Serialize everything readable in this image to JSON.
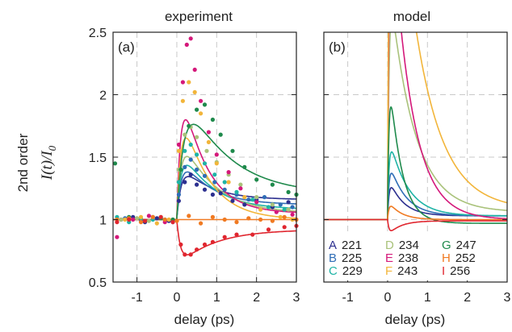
{
  "figure": {
    "ylabel_prefix": "2nd order",
    "ylabel_main": "I(t)/I",
    "ylabel_sub": "0"
  },
  "legend": [
    {
      "letter": "A",
      "value": "221",
      "color": "#2c2f8f"
    },
    {
      "letter": "B",
      "value": "225",
      "color": "#2f6db6"
    },
    {
      "letter": "C",
      "value": "229",
      "color": "#1fb4a6"
    },
    {
      "letter": "D",
      "value": "234",
      "color": "#a9c27a"
    },
    {
      "letter": "E",
      "value": "238",
      "color": "#d4187a"
    },
    {
      "letter": "F",
      "value": "243",
      "color": "#f2b53a"
    },
    {
      "letter": "G",
      "value": "247",
      "color": "#1f8a4c"
    },
    {
      "letter": "H",
      "value": "252",
      "color": "#f07a22"
    },
    {
      "letter": "I",
      "value": "256",
      "color": "#e0262f"
    }
  ],
  "chart_data": [
    {
      "type": "scatter",
      "title": "experiment",
      "panel_label": "(a)",
      "xlabel": "delay (ps)",
      "ylabel": "I(t)/I0",
      "xlim": [
        -1.6,
        3
      ],
      "ylim": [
        0.5,
        2.5
      ],
      "x_ticks": [
        "-1",
        "0",
        "1",
        "2",
        "3"
      ],
      "y_ticks": [
        "0.5",
        "1",
        "1.5",
        "2",
        "2.5"
      ],
      "grid": true,
      "legend_position": "none",
      "series": [
        {
          "label": "A",
          "color": "#2c2f8f",
          "fit": {
            "peak": 0.33,
            "tau": 0.7,
            "tail": 0.16,
            "rise": 0.12
          },
          "x": [
            -1.4,
            -1.1,
            -0.8,
            -0.5,
            -0.2,
            0.05,
            0.2,
            0.35,
            0.5,
            0.7,
            0.9,
            1.1,
            1.4,
            1.7,
            2.0,
            2.4,
            2.8
          ],
          "y": [
            1.0,
            1.02,
            0.98,
            1.01,
            0.99,
            1.15,
            1.3,
            1.36,
            1.28,
            1.24,
            1.2,
            1.21,
            1.15,
            1.12,
            1.16,
            1.1,
            1.14
          ]
        },
        {
          "label": "B",
          "color": "#2f6db6",
          "fit": {
            "peak": 0.45,
            "tau": 0.7,
            "tail": 0.12,
            "rise": 0.12
          },
          "x": [
            -1.3,
            -0.9,
            -0.6,
            -0.3,
            -0.1,
            0.05,
            0.2,
            0.35,
            0.5,
            0.7,
            0.95,
            1.2,
            1.5,
            1.8,
            2.2,
            2.6,
            2.9
          ],
          "y": [
            1.01,
            0.99,
            1.02,
            1.0,
            0.98,
            1.2,
            1.42,
            1.48,
            1.4,
            1.35,
            1.3,
            1.24,
            1.2,
            1.16,
            1.18,
            1.12,
            1.1
          ]
        },
        {
          "label": "C",
          "color": "#1fb4a6",
          "fit": {
            "peak": 0.58,
            "tau": 0.75,
            "tail": 0.08,
            "rise": 0.12
          },
          "x": [
            -1.5,
            -1.2,
            -0.9,
            -0.6,
            -0.3,
            0.05,
            0.2,
            0.35,
            0.5,
            0.7,
            0.95,
            1.2,
            1.5,
            1.9,
            2.3,
            2.7
          ],
          "y": [
            1.02,
            0.98,
            1.01,
            1.0,
            1.0,
            1.3,
            1.55,
            1.6,
            1.52,
            1.45,
            1.36,
            1.3,
            1.22,
            1.16,
            1.1,
            1.08
          ]
        },
        {
          "label": "D",
          "color": "#a9c27a",
          "fit": {
            "peak": 0.72,
            "tau": 0.8,
            "tail": 0.05,
            "rise": 0.12
          },
          "x": [
            -1.4,
            -1.0,
            -0.7,
            -0.4,
            -0.1,
            0.05,
            0.2,
            0.35,
            0.5,
            0.75,
            1.0,
            1.3,
            1.6,
            2.0,
            2.4,
            2.8
          ],
          "y": [
            1.0,
            1.01,
            0.99,
            1.02,
            1.0,
            1.4,
            1.68,
            1.74,
            1.66,
            1.55,
            1.46,
            1.36,
            1.28,
            1.18,
            1.12,
            1.08
          ]
        },
        {
          "label": "E",
          "color": "#d4187a",
          "fit": {
            "peak": 1.3,
            "tau": 0.6,
            "tail": 0.05,
            "rise": 0.12
          },
          "x": [
            -1.5,
            -1.1,
            -0.7,
            -0.3,
            0.05,
            0.15,
            0.25,
            0.35,
            0.45,
            0.6,
            0.8,
            1.0,
            1.3,
            1.6,
            2.0,
            2.5,
            2.9
          ],
          "y": [
            0.86,
            1.0,
            1.03,
            0.98,
            1.6,
            2.1,
            2.4,
            2.45,
            2.2,
            1.95,
            1.7,
            1.52,
            1.38,
            1.25,
            1.14,
            1.06,
            1.04
          ]
        },
        {
          "label": "F",
          "color": "#f2b53a",
          "fit": {
            "peak": 1.12,
            "tau": 0.65,
            "tail": 0.0,
            "rise": 0.13
          },
          "x": [
            -1.3,
            -0.9,
            -0.5,
            -0.2,
            0.05,
            0.15,
            0.3,
            0.45,
            0.6,
            0.8,
            1.0,
            1.3,
            1.7,
            2.1,
            2.6,
            2.9
          ],
          "y": [
            1.0,
            1.02,
            0.97,
            1.0,
            1.55,
            1.95,
            2.1,
            2.02,
            1.85,
            1.62,
            1.45,
            1.3,
            1.18,
            1.08,
            1.02,
            1.0
          ]
        },
        {
          "label": "G",
          "color": "#1f8a4c",
          "fit": {
            "peak": 0.98,
            "tau": 1.1,
            "tail": 0.2,
            "rise": 0.2
          },
          "x": [
            -1.55,
            -1.2,
            -0.8,
            -0.4,
            -0.1,
            0.1,
            0.3,
            0.5,
            0.7,
            0.9,
            1.1,
            1.4,
            1.7,
            2.0,
            2.4,
            2.8,
            3.0
          ],
          "y": [
            1.45,
            1.02,
            0.99,
            1.01,
            1.0,
            1.4,
            1.75,
            1.88,
            1.92,
            1.8,
            1.68,
            1.55,
            1.42,
            1.32,
            1.28,
            1.22,
            1.2
          ]
        },
        {
          "label": "H",
          "color": "#f07a22",
          "fit": {
            "peak": 0.0,
            "tau": 1.0,
            "tail": 0.0,
            "rise": 0.1
          },
          "x": [
            -1.5,
            -1.2,
            -0.9,
            -0.6,
            -0.3,
            0.0,
            0.3,
            0.6,
            0.9,
            1.2,
            1.5,
            1.8,
            2.1,
            2.4,
            2.7,
            3.0
          ],
          "y": [
            1.0,
            1.01,
            0.98,
            1.02,
            1.0,
            0.99,
            1.03,
            0.97,
            1.02,
            1.0,
            0.98,
            1.01,
            1.0,
            0.99,
            1.02,
            1.0
          ]
        },
        {
          "label": "I",
          "color": "#e0262f",
          "fit": {
            "peak": -0.3,
            "tau": 0.9,
            "tail": -0.08,
            "rise": 0.1
          },
          "x": [
            -1.5,
            -1.2,
            -0.8,
            -0.4,
            -0.1,
            0.1,
            0.2,
            0.35,
            0.5,
            0.7,
            0.9,
            1.2,
            1.5,
            1.9,
            2.3,
            2.7,
            3.0
          ],
          "y": [
            0.98,
            1.0,
            0.99,
            1.02,
            0.98,
            0.8,
            0.72,
            0.72,
            0.76,
            0.8,
            0.82,
            0.86,
            0.88,
            0.88,
            0.92,
            0.94,
            0.95
          ]
        }
      ]
    },
    {
      "type": "line",
      "title": "model",
      "panel_label": "(b)",
      "xlabel": "delay (ps)",
      "xlim": [
        -1.6,
        3
      ],
      "ylim": [
        0.5,
        2.5
      ],
      "x_ticks": [
        "-1",
        "0",
        "1",
        "2",
        "3"
      ],
      "grid": true,
      "legend_position": "bottom-left",
      "series": [
        {
          "label": "A",
          "color": "#2c2f8f",
          "peak": 0.33,
          "tau": 0.35,
          "tail": 0.03
        },
        {
          "label": "B",
          "color": "#2f6db6",
          "peak": 0.48,
          "tau": 0.4,
          "tail": 0.03
        },
        {
          "label": "C",
          "color": "#1fb4a6",
          "peak": 0.7,
          "tau": 0.45,
          "tail": 0.03
        },
        {
          "label": "D",
          "color": "#a9c27a",
          "peak": 2.0,
          "tau": 0.6,
          "tail": 0.06
        },
        {
          "label": "E",
          "color": "#d4187a",
          "peak": 3.0,
          "tau": 0.5,
          "tail": 0.0
        },
        {
          "label": "F",
          "color": "#f2b53a",
          "peak": 4.0,
          "tau": 0.7,
          "tail": 0.08
        },
        {
          "label": "G",
          "color": "#1f8a4c",
          "peak": 1.4,
          "tau": 0.3,
          "tail": -0.03
        },
        {
          "label": "H",
          "color": "#f07a22",
          "peak": 0.16,
          "tau": 0.3,
          "tail": 0.0
        },
        {
          "label": "I",
          "color": "#e0262f",
          "peak": -0.12,
          "tau": 0.3,
          "tail": -0.01
        }
      ]
    }
  ]
}
